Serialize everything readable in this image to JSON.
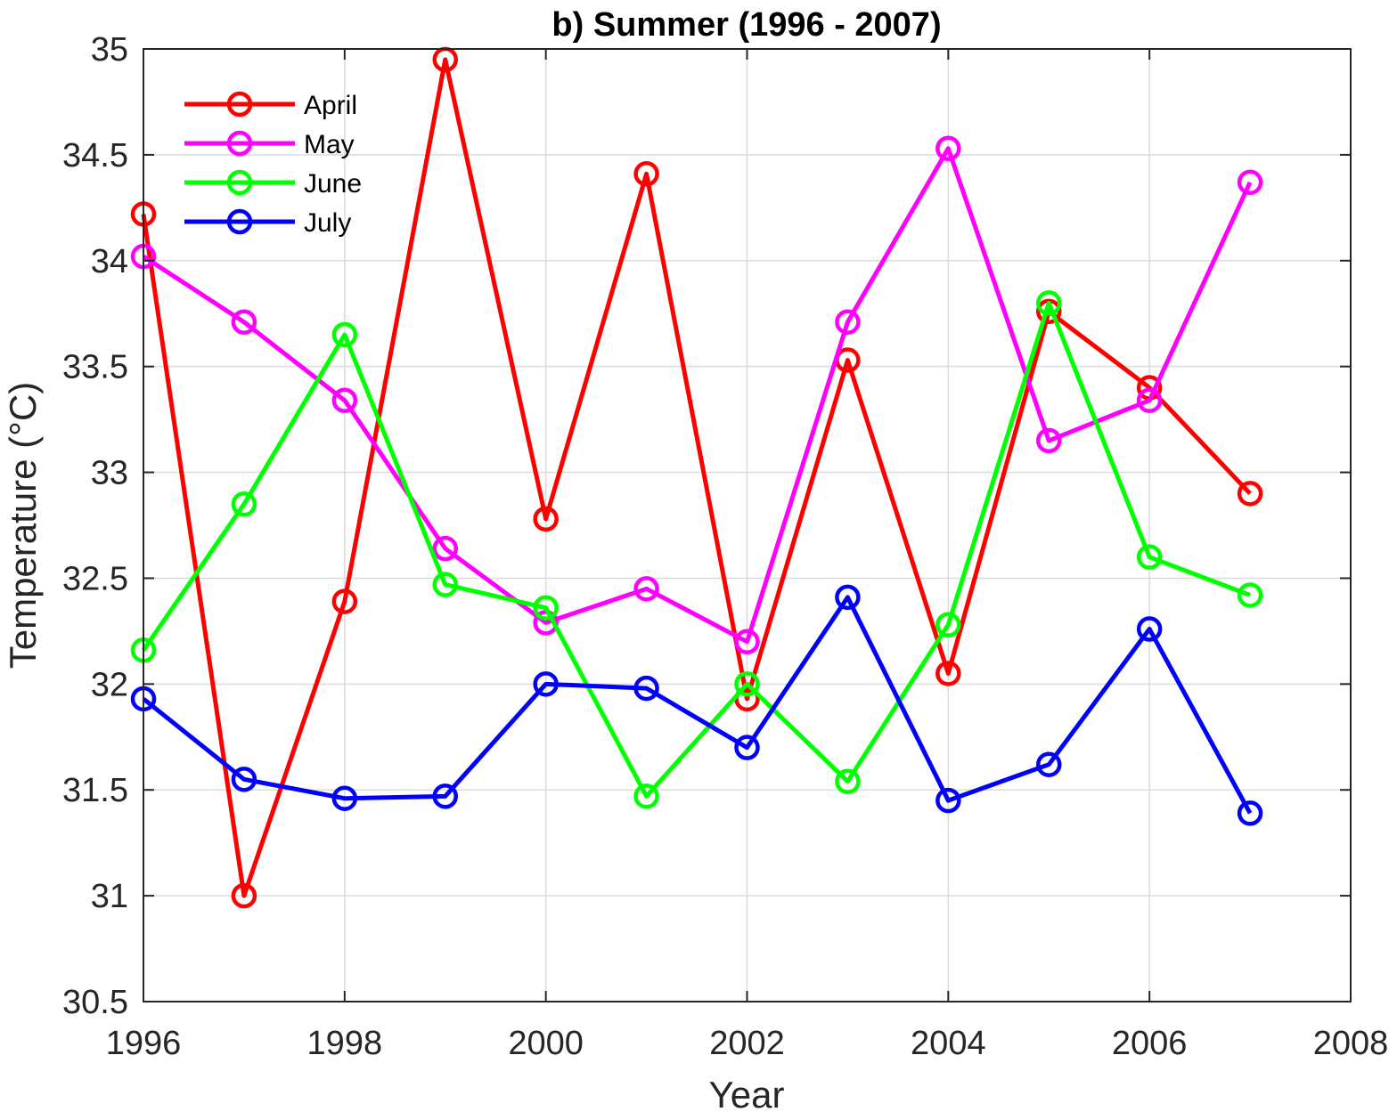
{
  "chart_data": {
    "type": "line",
    "title": "b) Summer (1996 - 2007)",
    "xlabel": "Year",
    "ylabel": "Temperature (°C)",
    "xlim": [
      1996,
      2008
    ],
    "ylim": [
      30.5,
      35
    ],
    "xticks": [
      1996,
      1998,
      2000,
      2002,
      2004,
      2006,
      2008
    ],
    "yticks": [
      30.5,
      31,
      31.5,
      32,
      32.5,
      33,
      33.5,
      34,
      34.5,
      35
    ],
    "grid": true,
    "legend_position": "top-left",
    "x": [
      1996,
      1997,
      1998,
      1999,
      2000,
      2001,
      2002,
      2003,
      2004,
      2005,
      2006,
      2007
    ],
    "series": [
      {
        "name": "April",
        "color": "#ff0000",
        "values": [
          34.22,
          31.0,
          32.39,
          34.95,
          32.78,
          34.41,
          31.93,
          33.53,
          32.05,
          33.76,
          33.4,
          32.9
        ]
      },
      {
        "name": "May",
        "color": "#ff00ff",
        "values": [
          34.02,
          33.71,
          33.34,
          32.64,
          32.29,
          32.45,
          32.2,
          33.71,
          34.53,
          33.15,
          33.34,
          34.37
        ]
      },
      {
        "name": "June",
        "color": "#00ff00",
        "values": [
          32.16,
          32.85,
          33.65,
          32.47,
          32.36,
          31.47,
          32.0,
          31.54,
          32.28,
          33.8,
          32.6,
          32.42
        ]
      },
      {
        "name": "July",
        "color": "#0000ff",
        "values": [
          31.93,
          31.55,
          31.46,
          31.47,
          32.0,
          31.98,
          31.7,
          32.41,
          31.45,
          31.62,
          32.26,
          31.39
        ]
      }
    ]
  }
}
